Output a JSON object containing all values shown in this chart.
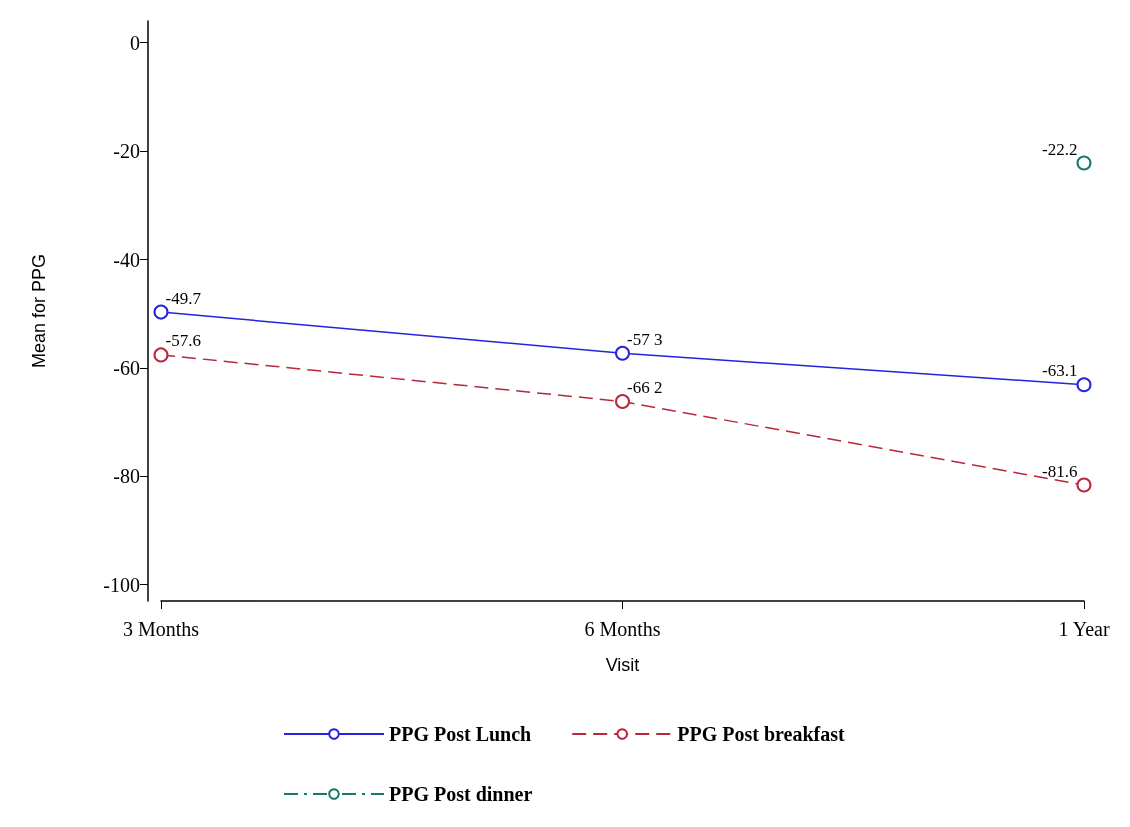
{
  "chart_data": {
    "type": "line",
    "xlabel": "Visit",
    "ylabel": "Mean for PPG",
    "categories": [
      "3 Months",
      "6 Months",
      "1 Year"
    ],
    "ylim": [
      -103,
      4
    ],
    "yticks": [
      -100,
      -80,
      -60,
      -40,
      -20,
      0
    ],
    "grid": false,
    "legend": "bottom",
    "marker": "circle",
    "series": [
      {
        "name": "PPG Post Lunch",
        "color": "#2323e0",
        "line_style": "solid",
        "values": [
          -49.7,
          -57.3,
          -63.1
        ],
        "value_labels": [
          "-49.7",
          "-57 3",
          "-63.1"
        ]
      },
      {
        "name": "PPG Post breakfast",
        "color": "#b8283a",
        "line_style": "dashed",
        "values": [
          -57.6,
          -66.2,
          -81.6
        ],
        "value_labels": [
          "-57.6",
          "-66 2",
          "-81.6"
        ]
      },
      {
        "name": "PPG Post dinner",
        "color": "#16796f",
        "line_style": "dashdot",
        "values": [
          null,
          null,
          -22.2
        ],
        "value_labels": [
          null,
          null,
          "-22.2"
        ]
      }
    ]
  }
}
